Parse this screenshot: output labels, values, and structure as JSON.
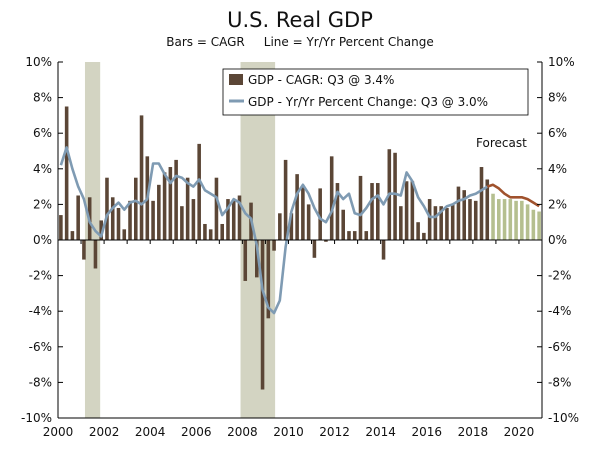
{
  "chart_data": {
    "type": "bar",
    "title": "U.S. Real GDP",
    "subtitle": "Bars = CAGR     Line = Yr/Yr Percent Change",
    "ylim": [
      -10,
      10
    ],
    "y_ticks_left": [
      "10%",
      "8%",
      "6%",
      "4%",
      "2%",
      "0%",
      "-2%",
      "-4%",
      "-6%",
      "-8%",
      "-10%"
    ],
    "y_ticks_right": [
      "10%",
      "8%",
      "6%",
      "4%",
      "2%",
      "0%",
      "-2%",
      "-4%",
      "-6%",
      "-8%",
      "-10%"
    ],
    "x_ticks": [
      "2000",
      "2002",
      "2004",
      "2006",
      "2008",
      "2010",
      "2012",
      "2014",
      "2016",
      "2018",
      "2020"
    ],
    "x_range": [
      2000,
      2021
    ],
    "grid": false,
    "legend_position": "top-right",
    "legend": [
      {
        "label": "GDP - CAGR: Q3 @ 3.4%",
        "kind": "bar",
        "color": "#5b4636"
      },
      {
        "label": "GDP - Yr/Yr Percent Change: Q3 @ 3.0%",
        "kind": "line",
        "color": "#7f9bb3"
      }
    ],
    "annotation": "Forecast",
    "recessions": [
      [
        2001.17,
        2001.83
      ],
      [
        2007.92,
        2009.42
      ]
    ],
    "colors": {
      "bar_actual": "#5b4636",
      "bar_forecast": "#b5bf8f",
      "line_actual": "#7f9bb3",
      "line_forecast": "#a0522d",
      "recession": "#d3d4c2",
      "axis": "#000000"
    },
    "series": [
      {
        "name": "GDP - CAGR",
        "x": [
          2000.0,
          2000.25,
          2000.5,
          2000.75,
          2001.0,
          2001.25,
          2001.5,
          2001.75,
          2002.0,
          2002.25,
          2002.5,
          2002.75,
          2003.0,
          2003.25,
          2003.5,
          2003.75,
          2004.0,
          2004.25,
          2004.5,
          2004.75,
          2005.0,
          2005.25,
          2005.5,
          2005.75,
          2006.0,
          2006.25,
          2006.5,
          2006.75,
          2007.0,
          2007.25,
          2007.5,
          2007.75,
          2008.0,
          2008.25,
          2008.5,
          2008.75,
          2009.0,
          2009.25,
          2009.5,
          2009.75,
          2010.0,
          2010.25,
          2010.5,
          2010.75,
          2011.0,
          2011.25,
          2011.5,
          2011.75,
          2012.0,
          2012.25,
          2012.5,
          2012.75,
          2013.0,
          2013.25,
          2013.5,
          2013.75,
          2014.0,
          2014.25,
          2014.5,
          2014.75,
          2015.0,
          2015.25,
          2015.5,
          2015.75,
          2016.0,
          2016.25,
          2016.5,
          2016.75,
          2017.0,
          2017.25,
          2017.5,
          2017.75,
          2018.0,
          2018.25,
          2018.5
        ],
        "values": [
          1.4,
          7.5,
          0.5,
          2.5,
          -1.1,
          2.4,
          -1.6,
          1.1,
          3.5,
          2.4,
          1.8,
          0.6,
          2.2,
          3.5,
          7.0,
          4.7,
          2.2,
          3.1,
          3.8,
          4.1,
          4.5,
          1.9,
          3.5,
          2.3,
          5.4,
          0.9,
          0.6,
          3.5,
          0.9,
          2.3,
          2.2,
          2.5,
          -2.3,
          2.1,
          -2.1,
          -8.4,
          -4.4,
          -0.6,
          1.5,
          4.5,
          1.5,
          3.7,
          3.0,
          2.0,
          -1.0,
          2.9,
          -0.1,
          4.7,
          3.2,
          1.7,
          0.5,
          0.5,
          3.6,
          0.5,
          3.2,
          3.2,
          -1.1,
          5.1,
          4.9,
          1.9,
          3.3,
          3.3,
          1.0,
          0.4,
          2.3,
          1.9,
          1.9,
          1.8,
          2.0,
          3.0,
          2.8,
          2.3,
          2.2,
          4.1,
          3.4
        ]
      },
      {
        "name": "GDP - CAGR forecast",
        "x": [
          2018.75,
          2019.0,
          2019.25,
          2019.5,
          2019.75,
          2020.0,
          2020.25,
          2020.5,
          2020.75
        ],
        "values": [
          2.6,
          2.3,
          2.3,
          2.3,
          2.2,
          2.2,
          2.0,
          1.7,
          1.6
        ]
      },
      {
        "name": "GDP - Yr/Yr Percent Change",
        "x": [
          2000.0,
          2000.25,
          2000.5,
          2000.75,
          2001.0,
          2001.25,
          2001.5,
          2001.75,
          2002.0,
          2002.25,
          2002.5,
          2002.75,
          2003.0,
          2003.25,
          2003.5,
          2003.75,
          2004.0,
          2004.25,
          2004.5,
          2004.75,
          2005.0,
          2005.25,
          2005.5,
          2005.75,
          2006.0,
          2006.25,
          2006.5,
          2006.75,
          2007.0,
          2007.25,
          2007.5,
          2007.75,
          2008.0,
          2008.25,
          2008.5,
          2008.75,
          2009.0,
          2009.25,
          2009.5,
          2009.75,
          2010.0,
          2010.25,
          2010.5,
          2010.75,
          2011.0,
          2011.25,
          2011.5,
          2011.75,
          2012.0,
          2012.25,
          2012.5,
          2012.75,
          2013.0,
          2013.25,
          2013.5,
          2013.75,
          2014.0,
          2014.25,
          2014.5,
          2014.75,
          2015.0,
          2015.25,
          2015.5,
          2015.75,
          2016.0,
          2016.25,
          2016.5,
          2016.75,
          2017.0,
          2017.25,
          2017.5,
          2017.75,
          2018.0,
          2018.25,
          2018.5
        ],
        "values": [
          4.2,
          5.2,
          4.0,
          3.0,
          2.3,
          1.0,
          0.5,
          0.2,
          1.4,
          1.8,
          2.1,
          1.7,
          2.1,
          2.2,
          2.0,
          2.3,
          4.3,
          4.3,
          3.7,
          3.2,
          3.6,
          3.5,
          3.2,
          3.0,
          3.4,
          2.8,
          2.6,
          2.4,
          1.4,
          1.8,
          2.3,
          2.1,
          1.5,
          1.2,
          -0.3,
          -2.8,
          -3.8,
          -4.1,
          -3.4,
          -0.4,
          1.6,
          2.6,
          3.1,
          2.6,
          1.8,
          1.2,
          1.0,
          1.6,
          2.7,
          2.3,
          2.6,
          1.5,
          1.4,
          1.8,
          2.3,
          2.5,
          2.0,
          2.6,
          2.6,
          2.5,
          3.8,
          3.3,
          2.4,
          1.9,
          1.3,
          1.3,
          1.6,
          1.9,
          2.0,
          2.2,
          2.3,
          2.5,
          2.6,
          2.8,
          3.0
        ]
      },
      {
        "name": "GDP - Yr/Yr Percent Change forecast",
        "x": [
          2018.5,
          2018.75,
          2019.0,
          2019.25,
          2019.5,
          2019.75,
          2020.0,
          2020.25,
          2020.5,
          2020.75
        ],
        "values": [
          3.0,
          3.1,
          2.9,
          2.6,
          2.4,
          2.4,
          2.4,
          2.3,
          2.1,
          1.9
        ]
      }
    ]
  }
}
